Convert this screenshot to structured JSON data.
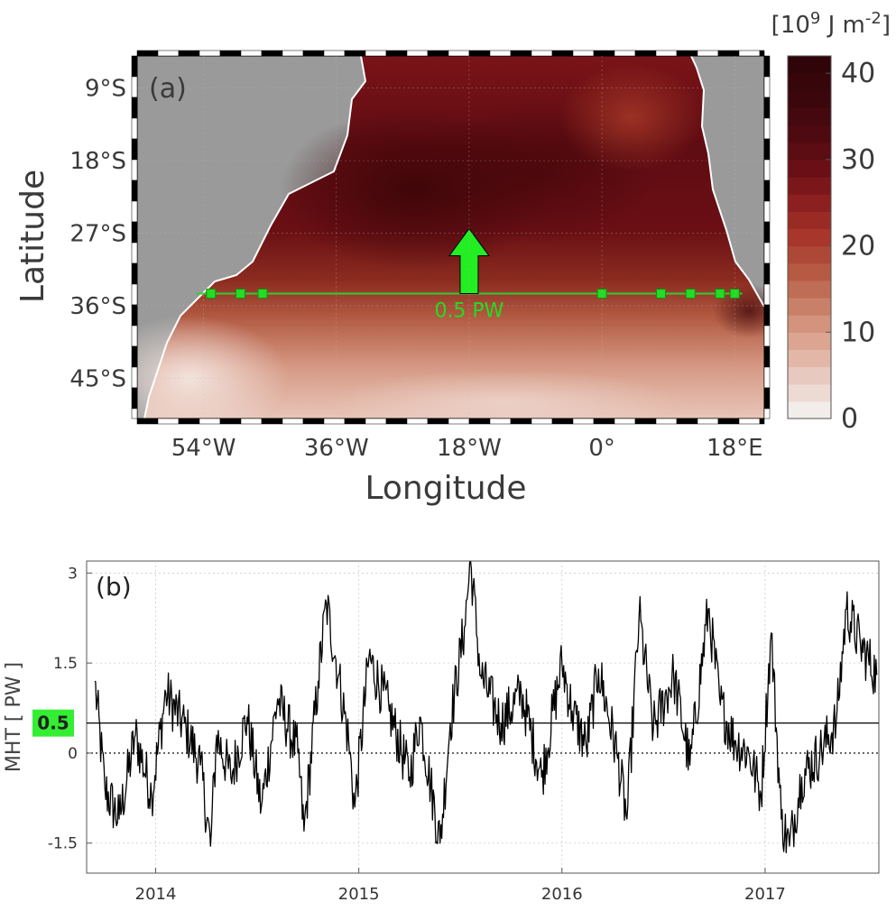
{
  "chart_data": [
    {
      "panel": "a",
      "type": "heatmap",
      "panel_label": "(a)",
      "xlabel": "Longitude",
      "ylabel": "Latitude",
      "x_ticks": [
        "54°W",
        "36°W",
        "18°W",
        "0°",
        "18°E"
      ],
      "x_tick_values": [
        -54,
        -36,
        -18,
        0,
        18
      ],
      "y_ticks": [
        "9°S",
        "18°S",
        "27°S",
        "36°S",
        "45°S"
      ],
      "y_tick_values": [
        -9,
        -18,
        -27,
        -36,
        -45
      ],
      "xlim": [
        -63,
        22
      ],
      "ylim": [
        -50,
        -5
      ],
      "colorbar": {
        "unit_base": "[10",
        "unit_exp1": "9",
        "unit_mid": " J m",
        "unit_exp2": "-2",
        "unit_end": "]",
        "ticks": [
          "0",
          "10",
          "20",
          "30",
          "40"
        ],
        "tick_values": [
          0,
          10,
          20,
          30,
          40
        ],
        "range": [
          0,
          42
        ],
        "levels": 21
      },
      "section_latitude": -34.5,
      "section_lon_range": [
        -55,
        19
      ],
      "stations_lon": [
        -53,
        -49,
        -46,
        0,
        8,
        12,
        16,
        18
      ],
      "arrow_label": "0.5 PW",
      "arrow_value": 0.5,
      "arrow_direction": "north",
      "land_color": "#9a9a9a",
      "section_color": "#33cc33"
    },
    {
      "panel": "b",
      "type": "line",
      "panel_label": "(b)",
      "ylabel": "MHT [ PW ]",
      "x_ticks": [
        "2014",
        "2015",
        "2016",
        "2017"
      ],
      "x_tick_values": [
        2014,
        2015,
        2016,
        2017
      ],
      "xlim": [
        2013.66,
        2017.56
      ],
      "y_ticks": [
        "3",
        "1.5",
        "0",
        "-1.5"
      ],
      "y_tick_values": [
        3,
        1.5,
        0,
        -1.5
      ],
      "ylim": [
        -2,
        3.2
      ],
      "mean_value": 0.5,
      "mean_label": "0.5",
      "mean_label_color": "#33ee33",
      "zero_line": "dotted",
      "series": [
        {
          "x": [
            2013.7,
            2013.75,
            2013.82,
            2013.9,
            2013.98,
            2014.05,
            2014.15,
            2014.22,
            2014.27,
            2014.3,
            2014.37,
            2014.45,
            2014.52,
            2014.6,
            2014.7,
            2014.73,
            2014.8,
            2014.84,
            2014.9,
            2014.95,
            2014.98,
            2015.05,
            2015.15,
            2015.25,
            2015.3,
            2015.4,
            2015.45,
            2015.52,
            2015.55,
            2015.6,
            2015.7,
            2015.8,
            2015.9,
            2016.0,
            2016.05,
            2016.12,
            2016.18,
            2016.27,
            2016.32,
            2016.38,
            2016.45,
            2016.55,
            2016.63,
            2016.72,
            2016.78,
            2016.85,
            2016.92,
            2016.98,
            2017.03,
            2017.08,
            2017.12,
            2017.18,
            2017.27,
            2017.35,
            2017.4,
            2017.47,
            2017.55
          ],
          "y": [
            1.2,
            -0.6,
            -1.1,
            0.3,
            -0.7,
            1.0,
            0.4,
            -0.2,
            -1.55,
            0.3,
            -0.4,
            0.6,
            -0.9,
            0.9,
            0.0,
            -1.3,
            1.2,
            2.5,
            1.3,
            0.2,
            -0.9,
            1.6,
            0.7,
            -0.4,
            0.6,
            -1.5,
            0.5,
            2.1,
            3.2,
            1.3,
            0.5,
            1.0,
            -0.4,
            1.5,
            0.7,
            0.1,
            1.4,
            0.0,
            -1.1,
            2.3,
            0.4,
            1.3,
            -0.2,
            2.4,
            0.8,
            0.2,
            0.0,
            -0.7,
            2.0,
            -1.1,
            -1.55,
            -0.4,
            0.0,
            0.5,
            2.4,
            1.8,
            1.3
          ]
        }
      ]
    }
  ]
}
